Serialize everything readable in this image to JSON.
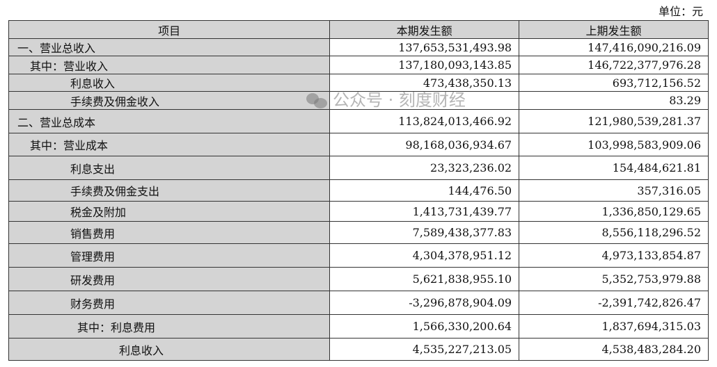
{
  "unit_label": "单位：元",
  "headers": [
    "项目",
    "本期发生额",
    "上期发生额"
  ],
  "rows": [
    {
      "label": "一、营业总收入",
      "indent": 0,
      "current": "137,653,531,493.98",
      "prior": "147,416,090,216.09"
    },
    {
      "label": "其中：营业收入",
      "indent": 1,
      "current": "137,180,093,143.85",
      "prior": "146,722,377,976.28"
    },
    {
      "label": "利息收入",
      "indent": 2,
      "current": "473,438,350.13",
      "prior": "693,712,156.52"
    },
    {
      "label": "手续费及佣金收入",
      "indent": 2,
      "current": "",
      "prior": "83.29"
    },
    {
      "label": "二、营业总成本",
      "indent": 0,
      "current": "113,824,013,466.92",
      "prior": "121,980,539,281.37"
    },
    {
      "label": "其中：营业成本",
      "indent": 1,
      "current": "98,168,036,934.67",
      "prior": "103,998,583,909.06"
    },
    {
      "label": "利息支出",
      "indent": 2,
      "current": "23,323,236.02",
      "prior": "154,484,621.81"
    },
    {
      "label": "手续费及佣金支出",
      "indent": 2,
      "current": "144,476.50",
      "prior": "357,316.05"
    },
    {
      "label": "税金及附加",
      "indent": 2,
      "current": "1,413,731,439.77",
      "prior": "1,336,850,129.65"
    },
    {
      "label": "销售费用",
      "indent": 2,
      "current": "7,589,438,377.83",
      "prior": "8,556,118,296.52"
    },
    {
      "label": "管理费用",
      "indent": 2,
      "current": "4,304,378,951.12",
      "prior": "4,973,133,854.87"
    },
    {
      "label": "研发费用",
      "indent": 2,
      "current": "5,621,838,955.10",
      "prior": "5,352,753,979.88"
    },
    {
      "label": "财务费用",
      "indent": 2,
      "current": "-3,296,878,904.09",
      "prior": "-2,391,742,826.47"
    },
    {
      "label": "其中：利息费用",
      "indent": 3,
      "current": "1,566,330,200.64",
      "prior": "1,837,694,315.03"
    },
    {
      "label": "利息收入",
      "indent": 4,
      "current": "4,535,227,213.05",
      "prior": "4,538,483,284.20"
    }
  ],
  "watermark": {
    "text": "公众号 · 刻度财经",
    "icon": "wechat-icon"
  }
}
